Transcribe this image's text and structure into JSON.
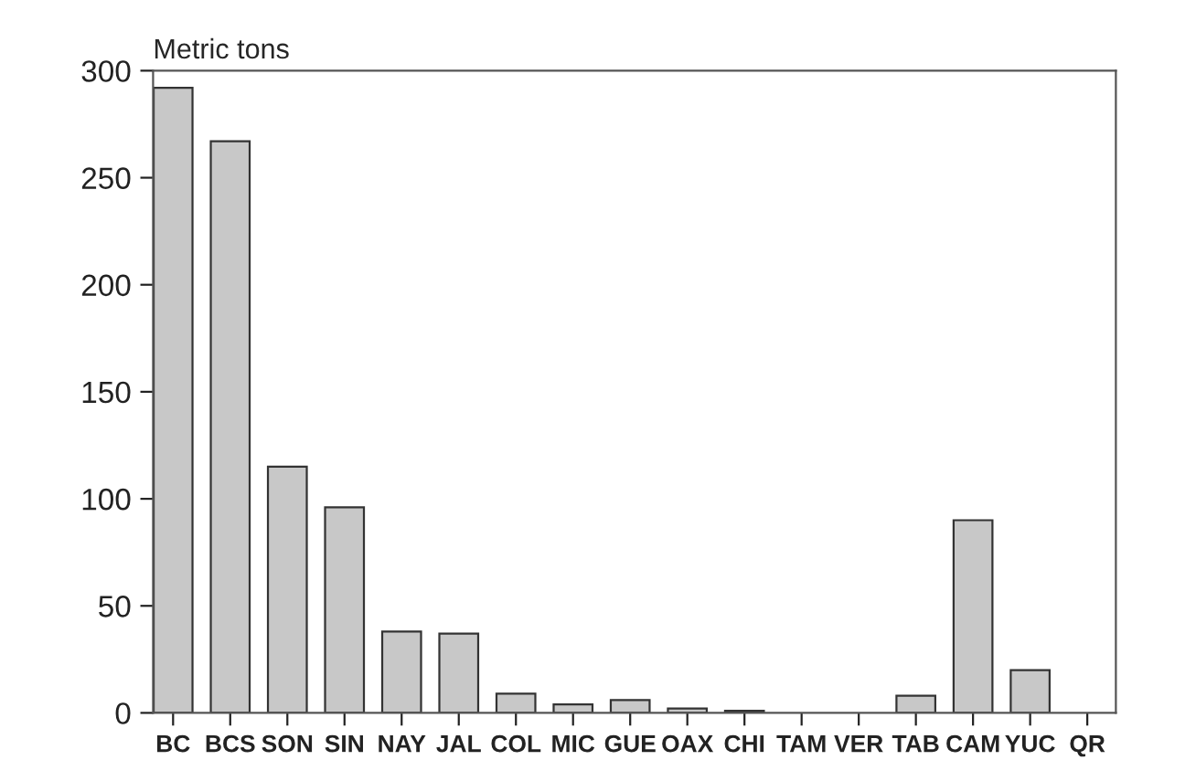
{
  "chart_data": {
    "type": "bar",
    "ylabel": "Metric tons",
    "categories": [
      "BC",
      "BCS",
      "SON",
      "SIN",
      "NAY",
      "JAL",
      "COL",
      "MIC",
      "GUE",
      "OAX",
      "CHI",
      "TAM",
      "VER",
      "TAB",
      "CAM",
      "YUC",
      "QR"
    ],
    "values": [
      292,
      267,
      115,
      96,
      38,
      37,
      9,
      4,
      6,
      2,
      1,
      0,
      0,
      8,
      90,
      20,
      0
    ],
    "color": "#c8c8c8",
    "ylim": [
      0,
      300
    ],
    "yticks": [
      0,
      50,
      100,
      150,
      200,
      250,
      300
    ],
    "grid": false
  }
}
